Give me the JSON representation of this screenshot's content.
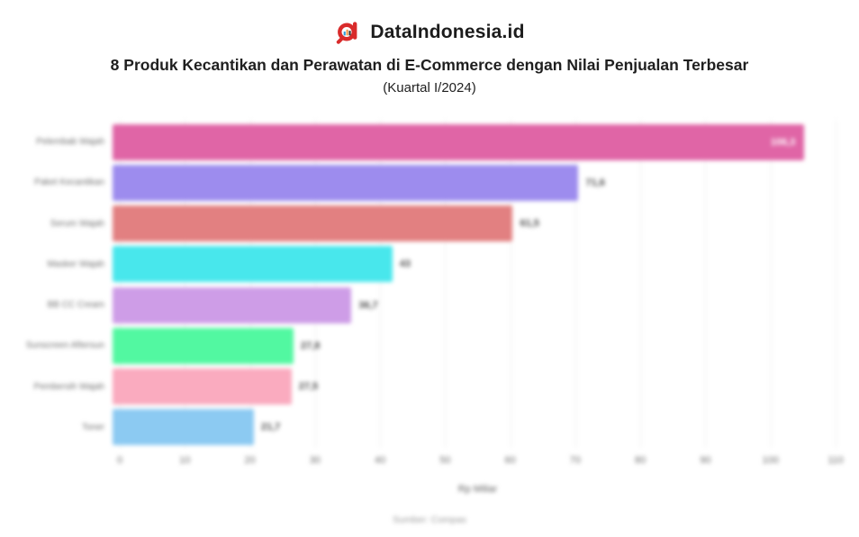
{
  "header": {
    "brand": "DataIndonesia.id",
    "logo_icon": "dataindonesia-magnifier-logo",
    "title": "8 Produk Kecantikan dan Perawatan di E-Commerce dengan Nilai Penjualan Terbesar",
    "subtitle": "(Kuartal I/2024)"
  },
  "chart_data": {
    "type": "bar",
    "orientation": "horizontal",
    "title": "8 Produk Kecantikan dan Perawatan di E-Commerce dengan Nilai Penjualan Terbesar (Kuartal I/2024)",
    "categories": [
      "Pelembab Wajah",
      "Paket Kecantikan",
      "Serum Wajah",
      "Masker Wajah",
      "BB CC Cream",
      "Sunscreen Aftersun",
      "Pembersih Wajah",
      "Toner"
    ],
    "values": [
      106.3,
      71.6,
      61.5,
      43,
      36.7,
      27.8,
      27.5,
      21.7
    ],
    "value_labels": [
      "106,3",
      "71,6",
      "61,5",
      "43",
      "36,7",
      "27,8",
      "27,5",
      "21,7"
    ],
    "bar_colors": [
      "#e065a6",
      "#9d8cee",
      "#e28081",
      "#48e7ec",
      "#ce9de7",
      "#52f8a1",
      "#faabbf",
      "#8ccaf2"
    ],
    "xlabel": "Rp Miliar",
    "ylabel": "",
    "xlim": [
      0,
      110
    ],
    "xticks": [
      0,
      10,
      20,
      30,
      40,
      50,
      60,
      70,
      80,
      90,
      100,
      110
    ],
    "grid": true,
    "gridline_color": "#ececec",
    "legend": "none",
    "first_bar_label_inside": true
  },
  "footer": {
    "source": "Sumber: Compas"
  }
}
